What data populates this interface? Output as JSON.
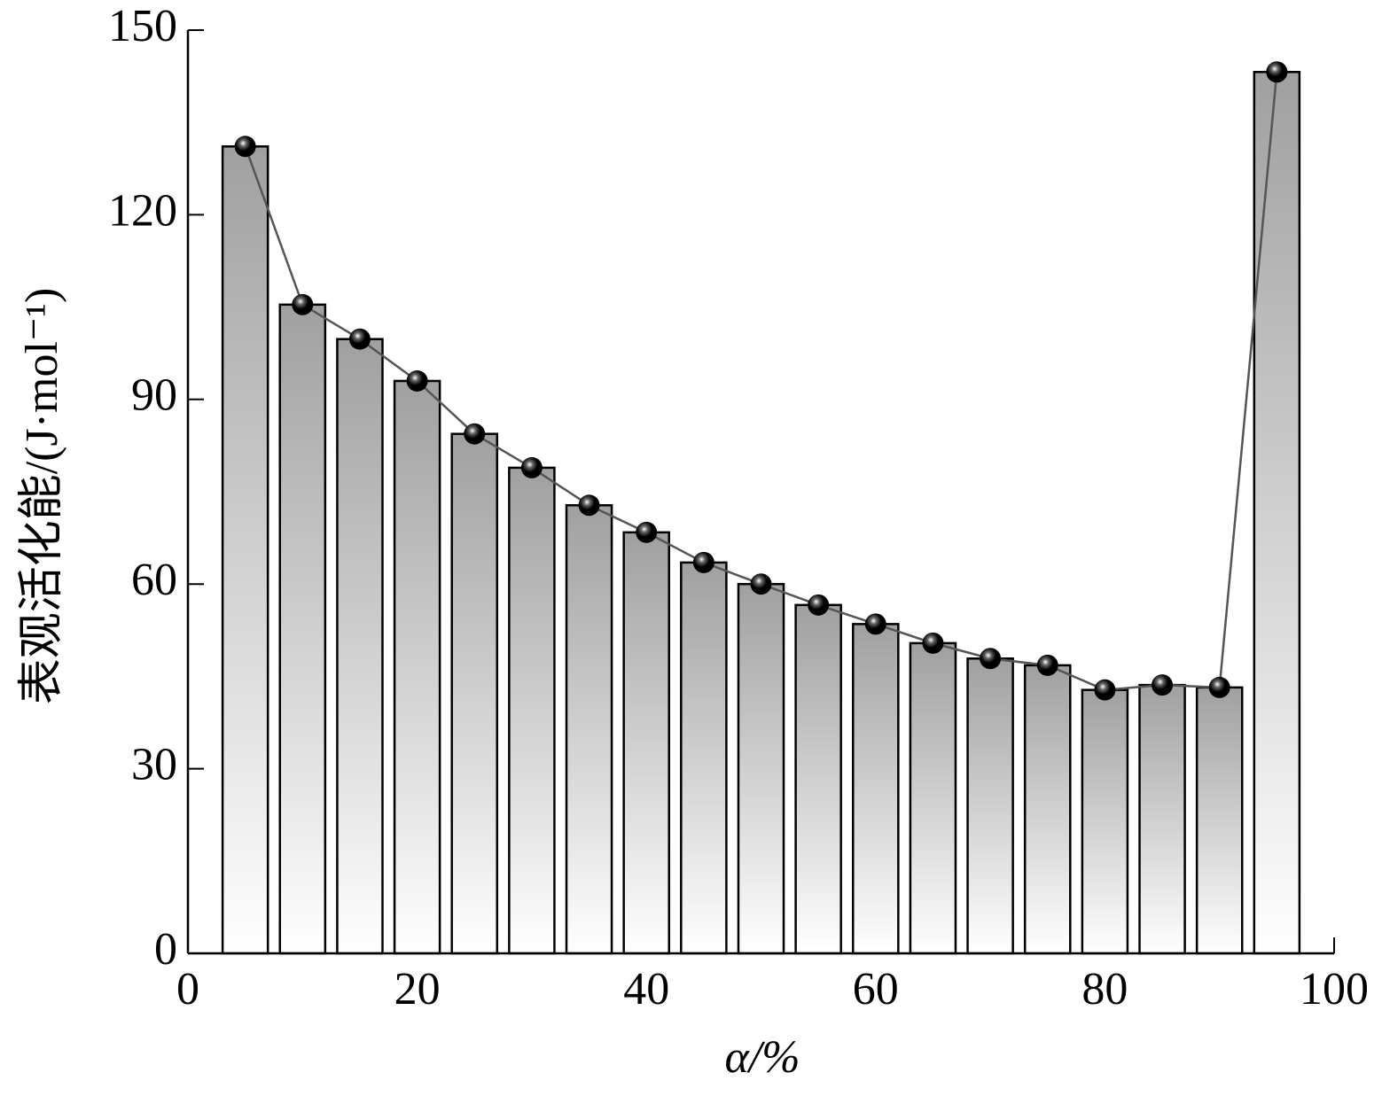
{
  "chart_data": {
    "type": "bar",
    "x_label": "α/%",
    "y_label": "表观活化能/(J·mol⁻¹)",
    "x": [
      5,
      10,
      15,
      20,
      25,
      30,
      35,
      40,
      45,
      50,
      55,
      60,
      65,
      70,
      75,
      80,
      85,
      90,
      95
    ],
    "series": [
      {
        "color": "#a0a0a0",
        "line_color": "#555555",
        "values": [
          131.1,
          105.4,
          99.8,
          93.0,
          84.4,
          78.9,
          72.8,
          68.4,
          63.5,
          60.0,
          56.6,
          53.5,
          50.4,
          47.9,
          46.8,
          42.8,
          43.6,
          43.2,
          143.2
        ]
      }
    ],
    "xlim": [
      0,
      100
    ],
    "xticks": [
      0,
      20,
      40,
      60,
      80,
      100
    ],
    "ylim": [
      0,
      150
    ],
    "yticks": [
      0,
      30,
      60,
      90,
      120,
      150
    ],
    "grid": false
  }
}
